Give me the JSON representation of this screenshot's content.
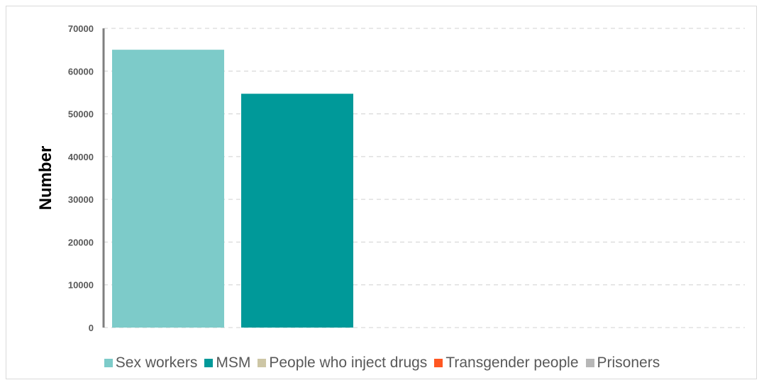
{
  "chart_data": {
    "type": "bar",
    "categories": [
      "Sex workers",
      "MSM",
      "People who inject drugs",
      "Transgender people",
      "Prisoners"
    ],
    "values": [
      65000,
      54700,
      0,
      0,
      0
    ],
    "title": "",
    "xlabel": "",
    "ylabel": "Number",
    "ylim": [
      0,
      70000
    ],
    "yticks": [
      0,
      10000,
      20000,
      30000,
      40000,
      50000,
      60000,
      70000
    ],
    "grid": true,
    "legend_position": "bottom",
    "colors": [
      "#7dcbc9",
      "#009999",
      "#cdc6a5",
      "#ff5722",
      "#b7b7b7"
    ]
  }
}
